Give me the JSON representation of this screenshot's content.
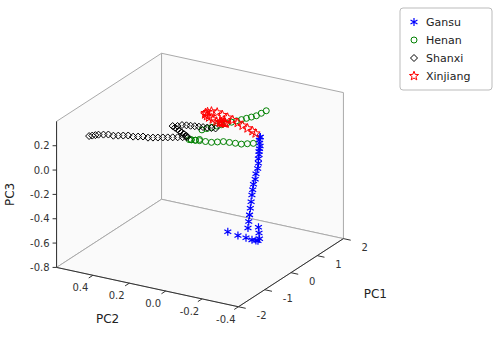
{
  "chart_data": {
    "type": "scatter",
    "xlabel": "PC2",
    "ylabel": "PC1",
    "zlabel": "PC3",
    "xlim": [
      0.6,
      -0.4
    ],
    "ylim": [
      -2,
      2
    ],
    "zlim": [
      -0.8,
      0.4
    ],
    "xticks": [
      0.4,
      0.2,
      {
        "value": 0.0,
        "label": "0.0"
      },
      -0.2,
      -0.4
    ],
    "yticks": [
      -2,
      -1,
      0,
      1,
      2
    ],
    "zticks": [
      -0.8,
      -0.6,
      -0.4,
      -0.2,
      {
        "value": 0.0,
        "label": "0.0"
      },
      0.2
    ],
    "grid": false,
    "legend": "upper right",
    "series": [
      {
        "name": "Gansu",
        "color": "blue",
        "marker": "asterisk",
        "x": [
          -0.2,
          -0.2,
          -0.205,
          -0.21,
          -0.21,
          -0.21,
          -0.215,
          -0.215,
          -0.22,
          -0.22,
          -0.215,
          -0.215,
          -0.21,
          -0.21,
          -0.21,
          -0.21,
          -0.21,
          -0.21,
          -0.21,
          -0.21,
          -0.21,
          -0.21,
          -0.21,
          -0.2,
          -0.19,
          -0.17,
          -0.14,
          -0.1,
          -0.05,
          -0.2
        ],
        "y": [
          0.2,
          0.18,
          0.16,
          0.14,
          0.12,
          0.1,
          0.07,
          0.04,
          0.01,
          -0.02,
          -0.05,
          -0.08,
          -0.11,
          -0.14,
          -0.17,
          -0.2,
          -0.23,
          -0.26,
          -0.29,
          -0.32,
          0.08,
          0.1,
          0.12,
          0.13,
          0.12,
          0.11,
          0.09,
          0.06,
          0.02,
          0.22
        ],
        "z": [
          0.22,
          0.2,
          0.18,
          0.16,
          0.14,
          0.12,
          0.1,
          0.07,
          0.04,
          0.0,
          -0.04,
          -0.08,
          -0.12,
          -0.16,
          -0.2,
          -0.25,
          -0.3,
          -0.35,
          -0.4,
          -0.45,
          -0.5,
          -0.55,
          -0.6,
          -0.62,
          -0.62,
          -0.62,
          -0.61,
          -0.6,
          -0.58,
          0.22
        ]
      },
      {
        "name": "Henan",
        "color": "green",
        "marker": "circle",
        "x": [
          -0.12,
          -0.1,
          -0.08,
          -0.06,
          -0.04,
          -0.02,
          0.0,
          0.02,
          0.04,
          0.06,
          0.08,
          0.1,
          0.12,
          0.14,
          -0.15,
          -0.12,
          -0.09,
          -0.06,
          -0.03,
          0.0,
          0.03,
          0.06,
          0.09,
          0.12,
          0.14,
          0.16,
          0.17,
          0.16,
          0.14,
          0.12
        ],
        "y": [
          1.0,
          0.95,
          0.9,
          0.85,
          0.8,
          0.75,
          0.7,
          0.65,
          0.6,
          0.55,
          0.5,
          0.45,
          0.4,
          0.35,
          0.3,
          0.28,
          0.26,
          0.24,
          0.22,
          0.2,
          0.18,
          0.16,
          0.14,
          0.12,
          0.1,
          0.08,
          0.07,
          0.08,
          0.1,
          0.12
        ],
        "z": [
          0.3,
          0.28,
          0.26,
          0.25,
          0.24,
          0.23,
          0.22,
          0.21,
          0.2,
          0.19,
          0.18,
          0.17,
          0.16,
          0.15,
          0.14,
          0.13,
          0.12,
          0.12,
          0.12,
          0.12,
          0.11,
          0.1,
          0.1,
          0.1,
          0.1,
          0.1,
          0.1,
          0.1,
          0.1,
          0.11
        ]
      },
      {
        "name": "Shanxi",
        "color": "black",
        "marker": "diamond",
        "x": [
          0.45,
          0.44,
          0.43,
          0.42,
          0.4,
          0.38,
          0.36,
          0.34,
          0.32,
          0.3,
          0.28,
          0.26,
          0.24,
          0.22,
          0.2,
          0.18,
          0.16,
          0.14,
          0.12,
          0.1,
          0.08,
          0.07,
          0.07,
          0.08,
          0.1,
          0.12,
          0.14,
          0.16,
          0.18,
          0.2,
          0.18,
          0.16,
          0.14,
          0.12,
          0.1,
          0.08,
          0.06,
          0.04,
          0.02,
          0.0
        ],
        "y": [
          -1.8,
          -1.75,
          -1.7,
          -1.65,
          -1.6,
          -1.55,
          -1.5,
          -1.45,
          -1.4,
          -1.35,
          -1.3,
          -1.25,
          -1.2,
          -1.15,
          -1.1,
          -1.05,
          -1.0,
          -0.95,
          -0.9,
          -0.85,
          -0.8,
          -0.75,
          -0.7,
          -0.65,
          -0.6,
          -0.55,
          -0.5,
          -0.45,
          -0.4,
          -0.35,
          -0.3,
          -0.27,
          -0.24,
          -0.22,
          -0.2,
          -0.18,
          -0.16,
          -0.14,
          -0.12,
          -0.1
        ],
        "z": [
          0.3,
          0.3,
          0.3,
          0.3,
          0.3,
          0.3,
          0.29,
          0.29,
          0.29,
          0.29,
          0.28,
          0.28,
          0.28,
          0.27,
          0.27,
          0.27,
          0.27,
          0.27,
          0.27,
          0.27,
          0.27,
          0.27,
          0.26,
          0.26,
          0.26,
          0.26,
          0.26,
          0.26,
          0.26,
          0.26,
          0.26,
          0.27,
          0.27,
          0.27,
          0.27,
          0.27,
          0.27,
          0.27,
          0.27,
          0.27
        ]
      },
      {
        "name": "Xinjiang",
        "color": "red",
        "marker": "star",
        "x": [
          -0.22,
          -0.2,
          -0.17,
          -0.14,
          -0.11,
          -0.08,
          -0.05,
          -0.02,
          0.01,
          0.04,
          0.06,
          0.07,
          0.07,
          0.06,
          0.05,
          0.03,
          0.01,
          -0.01,
          -0.02,
          -0.03,
          -0.04,
          -0.04,
          -0.03,
          -0.02,
          -0.01
        ],
        "y": [
          -0.1,
          -0.08,
          -0.06,
          -0.04,
          -0.02,
          0.0,
          0.01,
          0.02,
          0.03,
          0.02,
          0.01,
          0.0,
          -0.01,
          -0.01,
          0.0,
          0.0,
          0.0,
          0.0,
          0.0,
          0.0,
          0.0,
          0.0,
          0.0,
          0.0,
          0.0
        ],
        "z": [
          0.3,
          0.31,
          0.32,
          0.33,
          0.34,
          0.35,
          0.36,
          0.37,
          0.38,
          0.38,
          0.37,
          0.36,
          0.35,
          0.34,
          0.33,
          0.32,
          0.31,
          0.31,
          0.31,
          0.31,
          0.31,
          0.31,
          0.31,
          0.31,
          0.31
        ]
      }
    ]
  }
}
